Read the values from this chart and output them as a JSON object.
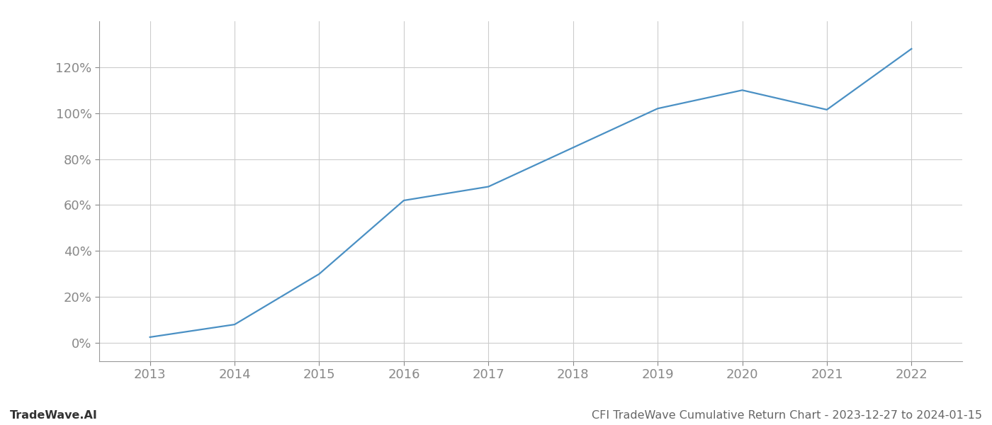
{
  "x_years": [
    2013,
    2014,
    2015,
    2016,
    2017,
    2018,
    2019,
    2020,
    2021,
    2022
  ],
  "y_values": [
    2.5,
    8.0,
    30.0,
    62.0,
    68.0,
    85.0,
    102.0,
    110.0,
    101.5,
    128.0
  ],
  "line_color": "#4a90c4",
  "line_width": 1.6,
  "bg_color": "#ffffff",
  "grid_color": "#cccccc",
  "tick_color": "#888888",
  "watermark_left": "TradeWave.AI",
  "watermark_right": "CFI TradeWave Cumulative Return Chart - 2023-12-27 to 2024-01-15",
  "ylim_min": -8,
  "ylim_max": 140,
  "yticks": [
    0,
    20,
    40,
    60,
    80,
    100,
    120
  ],
  "xticks": [
    2013,
    2014,
    2015,
    2016,
    2017,
    2018,
    2019,
    2020,
    2021,
    2022
  ],
  "xlim_min": 2012.4,
  "xlim_max": 2022.6,
  "tick_fontsize": 13,
  "watermark_fontsize": 11.5
}
